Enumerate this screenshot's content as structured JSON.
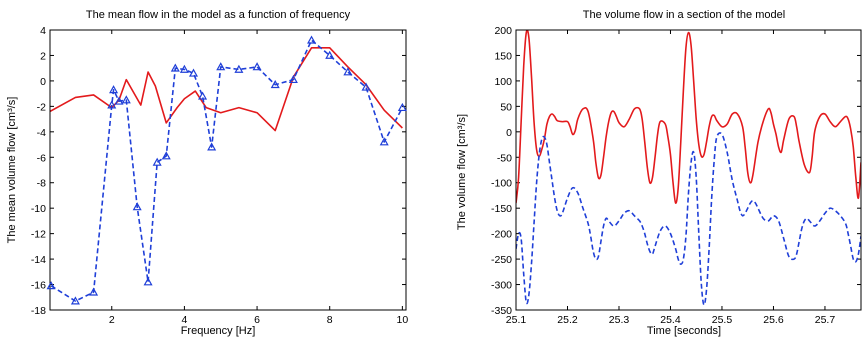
{
  "chart_data": [
    {
      "type": "line",
      "title": "The mean flow in the model as a function of frequency",
      "xlabel": "Frequency [Hz]",
      "ylabel": "The mean volume flow [cm³/s]",
      "xlim": [
        0.3,
        10.1
      ],
      "ylim": [
        -18,
        4
      ],
      "xticks": [
        2,
        4,
        6,
        8,
        10
      ],
      "yticks": [
        -18,
        -16,
        -14,
        -12,
        -10,
        -8,
        -6,
        -4,
        -2,
        0,
        2,
        4
      ],
      "grid": false,
      "series": [
        {
          "color": "#e31a1c",
          "style": "solid",
          "marker": "none",
          "x": [
            0.3,
            1.0,
            1.5,
            2.0,
            2.2,
            2.4,
            2.8,
            3.0,
            3.2,
            3.5,
            3.8,
            4.0,
            4.3,
            4.6,
            5.0,
            5.5,
            6.0,
            6.5,
            7.0,
            7.5,
            8.0,
            8.5,
            9.0,
            9.5,
            10.0
          ],
          "y": [
            -2.4,
            -1.3,
            -1.1,
            -2.1,
            -1.5,
            0.1,
            -1.9,
            0.7,
            -0.4,
            -3.3,
            -2.1,
            -1.4,
            -0.8,
            -2.1,
            -2.5,
            -2.1,
            -2.5,
            -3.9,
            0.3,
            2.6,
            2.6,
            1.1,
            -0.3,
            -2.3,
            -3.7
          ]
        },
        {
          "color": "#1f3fd8",
          "style": "dashed",
          "marker": "triangle",
          "x": [
            0.33,
            1.0,
            1.5,
            2.0,
            2.05,
            2.2,
            2.4,
            2.7,
            3.0,
            3.25,
            3.5,
            3.75,
            4.0,
            4.25,
            4.5,
            4.75,
            5.0,
            5.5,
            6.0,
            6.5,
            7.0,
            7.5,
            8.0,
            8.5,
            9.0,
            9.5,
            10.0
          ],
          "y": [
            -16.1,
            -17.3,
            -16.6,
            -1.9,
            -0.7,
            -1.6,
            -1.5,
            -9.9,
            -15.8,
            -6.4,
            -5.9,
            1.0,
            0.9,
            0.6,
            -1.2,
            -5.2,
            1.1,
            0.9,
            1.1,
            -0.3,
            0.1,
            3.2,
            2.0,
            0.7,
            -0.5,
            -4.8,
            -2.1
          ]
        }
      ]
    },
    {
      "type": "line",
      "title": "The volume flow in a section of the model",
      "xlabel": "Time [seconds]",
      "ylabel": "The volume flow [cm³/s]",
      "xlim": [
        25.1,
        25.77
      ],
      "ylim": [
        -350,
        200
      ],
      "xticks": [
        25.1,
        25.2,
        25.3,
        25.4,
        25.5,
        25.6,
        25.7
      ],
      "yticks": [
        -350,
        -300,
        -250,
        -200,
        -150,
        -100,
        -50,
        0,
        50,
        100,
        150,
        200
      ],
      "grid": false,
      "series": [
        {
          "color": "#e31a1c",
          "style": "solid",
          "x": [
            25.1,
            25.105,
            25.11,
            25.115,
            25.12,
            25.125,
            25.13,
            25.135,
            25.14,
            25.145,
            25.15,
            25.155,
            25.16,
            25.165,
            25.17,
            25.175,
            25.18,
            25.19,
            25.2,
            25.205,
            25.21,
            25.215,
            25.22,
            25.23,
            25.24,
            25.25,
            25.255,
            25.26,
            25.265,
            25.27,
            25.275,
            25.28,
            25.285,
            25.29,
            25.295,
            25.3,
            25.31,
            25.32,
            25.33,
            25.34,
            25.345,
            25.35,
            25.355,
            25.36,
            25.365,
            25.37,
            25.375,
            25.38,
            25.39,
            25.395,
            25.4,
            25.405,
            25.41,
            25.415,
            25.42,
            25.425,
            25.43,
            25.435,
            25.44,
            25.445,
            25.45,
            25.455,
            25.46,
            25.465,
            25.47,
            25.475,
            25.48,
            25.485,
            25.49,
            25.5,
            25.51,
            25.52,
            25.53,
            25.54,
            25.545,
            25.55,
            25.555,
            25.56,
            25.57,
            25.58,
            25.59,
            25.595,
            25.6,
            25.605,
            25.61,
            25.615,
            25.62,
            25.63,
            25.64,
            25.645,
            25.65,
            25.66,
            25.67,
            25.675,
            25.68,
            25.69,
            25.7,
            25.71,
            25.72,
            25.73,
            25.74,
            25.745,
            25.75,
            25.755,
            25.76,
            25.765,
            25.77
          ],
          "y": [
            -140,
            -90,
            20,
            130,
            195,
            185,
            110,
            20,
            -35,
            -48,
            -35,
            -15,
            15,
            30,
            35,
            30,
            22,
            20,
            20,
            10,
            -5,
            2,
            25,
            45,
            40,
            -15,
            -60,
            -90,
            -85,
            -50,
            -10,
            20,
            38,
            40,
            30,
            18,
            10,
            25,
            45,
            45,
            25,
            -20,
            -70,
            -100,
            -90,
            -50,
            -5,
            20,
            15,
            -10,
            -45,
            -100,
            -140,
            -110,
            -20,
            80,
            165,
            195,
            170,
            100,
            25,
            -25,
            -48,
            -45,
            -20,
            10,
            30,
            32,
            22,
            10,
            15,
            35,
            35,
            10,
            -30,
            -80,
            -100,
            -85,
            -20,
            20,
            45,
            38,
            15,
            -5,
            -30,
            -40,
            -15,
            25,
            30,
            10,
            -20,
            -65,
            -80,
            -50,
            0,
            30,
            35,
            20,
            10,
            20,
            30,
            25,
            5,
            -30,
            -90,
            -130,
            -60
          ]
        },
        {
          "color": "#1f3fd8",
          "style": "dashed",
          "x": [
            25.1,
            25.105,
            25.11,
            25.115,
            25.12,
            25.125,
            25.13,
            25.135,
            25.14,
            25.145,
            25.15,
            25.155,
            25.16,
            25.165,
            25.17,
            25.175,
            25.18,
            25.185,
            25.19,
            25.2,
            25.21,
            25.22,
            25.23,
            25.24,
            25.245,
            25.25,
            25.255,
            25.26,
            25.265,
            25.27,
            25.275,
            25.28,
            25.29,
            25.3,
            25.31,
            25.32,
            25.33,
            25.34,
            25.345,
            25.35,
            25.355,
            25.36,
            25.365,
            25.37,
            25.38,
            25.39,
            25.4,
            25.41,
            25.415,
            25.42,
            25.425,
            25.43,
            25.435,
            25.44,
            25.445,
            25.45,
            25.455,
            25.46,
            25.465,
            25.47,
            25.475,
            25.48,
            25.485,
            25.49,
            25.5,
            25.51,
            25.52,
            25.53,
            25.535,
            25.54,
            25.545,
            25.55,
            25.555,
            25.56,
            25.565,
            25.57,
            25.58,
            25.59,
            25.6,
            25.61,
            25.62,
            25.63,
            25.64,
            25.645,
            25.65,
            25.655,
            25.66,
            25.665,
            25.67,
            25.68,
            25.69,
            25.7,
            25.71,
            25.72,
            25.73,
            25.74,
            25.745,
            25.75,
            25.755,
            25.76,
            25.765,
            25.77
          ],
          "y": [
            -230,
            -200,
            -210,
            -280,
            -335,
            -320,
            -260,
            -180,
            -100,
            -45,
            -15,
            -10,
            -25,
            -60,
            -95,
            -130,
            -155,
            -165,
            -160,
            -130,
            -110,
            -120,
            -150,
            -180,
            -205,
            -235,
            -250,
            -245,
            -215,
            -185,
            -170,
            -175,
            -185,
            -175,
            -160,
            -155,
            -165,
            -175,
            -185,
            -200,
            -220,
            -235,
            -240,
            -225,
            -195,
            -185,
            -200,
            -230,
            -250,
            -260,
            -250,
            -205,
            -120,
            -60,
            -40,
            -90,
            -200,
            -300,
            -340,
            -310,
            -230,
            -130,
            -55,
            -10,
            -5,
            -40,
            -95,
            -135,
            -155,
            -165,
            -160,
            -150,
            -140,
            -135,
            -140,
            -150,
            -170,
            -175,
            -165,
            -175,
            -210,
            -245,
            -250,
            -240,
            -215,
            -190,
            -175,
            -170,
            -175,
            -185,
            -175,
            -160,
            -150,
            -155,
            -165,
            -180,
            -200,
            -225,
            -250,
            -255,
            -240,
            -205
          ]
        }
      ]
    }
  ]
}
